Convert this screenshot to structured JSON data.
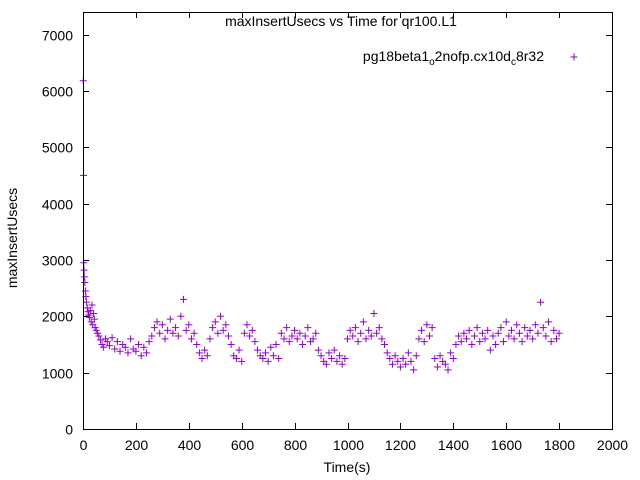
{
  "chart_data": {
    "type": "scatter",
    "title": "maxInsertUsecs vs Time for qr100.L1",
    "xlabel": "Time(s)",
    "ylabel": "maxInsertUsecs",
    "xlim": [
      0,
      2000
    ],
    "ylim": [
      0,
      7400
    ],
    "xticks": [
      0,
      200,
      400,
      600,
      800,
      1000,
      1200,
      1400,
      1600,
      1800,
      2000
    ],
    "yticks": [
      0,
      1000,
      2000,
      3000,
      4000,
      5000,
      6000,
      7000
    ],
    "grid": false,
    "legend_position": "top-right",
    "marker": "+",
    "color": "#9400d3",
    "series": [
      {
        "name": "pg18beta1_o2nofp.cx10d_c8r32",
        "points": [
          [
            1,
            6180
          ],
          [
            2,
            4500
          ],
          [
            3,
            2950
          ],
          [
            4,
            2820
          ],
          [
            5,
            2700
          ],
          [
            7,
            2600
          ],
          [
            9,
            2450
          ],
          [
            11,
            2350
          ],
          [
            13,
            2250
          ],
          [
            16,
            2150
          ],
          [
            19,
            2080
          ],
          [
            22,
            2020
          ],
          [
            25,
            1980
          ],
          [
            28,
            2100
          ],
          [
            31,
            1900
          ],
          [
            34,
            2200
          ],
          [
            37,
            1850
          ],
          [
            40,
            2050
          ],
          [
            43,
            1950
          ],
          [
            46,
            1800
          ],
          [
            50,
            1750
          ],
          [
            55,
            1700
          ],
          [
            60,
            1650
          ],
          [
            66,
            1580
          ],
          [
            72,
            1500
          ],
          [
            78,
            1450
          ],
          [
            85,
            1600
          ],
          [
            92,
            1550
          ],
          [
            100,
            1480
          ],
          [
            110,
            1620
          ],
          [
            120,
            1420
          ],
          [
            130,
            1550
          ],
          [
            140,
            1380
          ],
          [
            150,
            1500
          ],
          [
            160,
            1450
          ],
          [
            170,
            1350
          ],
          [
            180,
            1600
          ],
          [
            190,
            1420
          ],
          [
            200,
            1380
          ],
          [
            210,
            1500
          ],
          [
            220,
            1300
          ],
          [
            230,
            1450
          ],
          [
            240,
            1350
          ],
          [
            250,
            1550
          ],
          [
            260,
            1650
          ],
          [
            270,
            1800
          ],
          [
            280,
            1900
          ],
          [
            290,
            1700
          ],
          [
            300,
            1850
          ],
          [
            310,
            1600
          ],
          [
            320,
            1750
          ],
          [
            330,
            1950
          ],
          [
            340,
            1700
          ],
          [
            350,
            1800
          ],
          [
            360,
            1650
          ],
          [
            370,
            2000
          ],
          [
            380,
            2300
          ],
          [
            390,
            1750
          ],
          [
            400,
            1850
          ],
          [
            410,
            1600
          ],
          [
            420,
            1700
          ],
          [
            430,
            1500
          ],
          [
            440,
            1350
          ],
          [
            450,
            1250
          ],
          [
            460,
            1400
          ],
          [
            470,
            1300
          ],
          [
            480,
            1600
          ],
          [
            490,
            1800
          ],
          [
            500,
            1900
          ],
          [
            510,
            1700
          ],
          [
            520,
            2000
          ],
          [
            530,
            1750
          ],
          [
            540,
            1850
          ],
          [
            550,
            1650
          ],
          [
            560,
            1500
          ],
          [
            570,
            1300
          ],
          [
            580,
            1250
          ],
          [
            590,
            1400
          ],
          [
            600,
            1200
          ],
          [
            610,
            1700
          ],
          [
            620,
            1850
          ],
          [
            630,
            1650
          ],
          [
            640,
            1750
          ],
          [
            650,
            1550
          ],
          [
            660,
            1400
          ],
          [
            670,
            1300
          ],
          [
            680,
            1250
          ],
          [
            690,
            1350
          ],
          [
            700,
            1200
          ],
          [
            710,
            1450
          ],
          [
            720,
            1300
          ],
          [
            730,
            1500
          ],
          [
            740,
            1250
          ],
          [
            750,
            1700
          ],
          [
            760,
            1600
          ],
          [
            770,
            1800
          ],
          [
            780,
            1550
          ],
          [
            790,
            1650
          ],
          [
            800,
            1750
          ],
          [
            810,
            1600
          ],
          [
            820,
            1700
          ],
          [
            830,
            1500
          ],
          [
            840,
            1650
          ],
          [
            850,
            1800
          ],
          [
            860,
            1550
          ],
          [
            870,
            1600
          ],
          [
            880,
            1700
          ],
          [
            890,
            1400
          ],
          [
            900,
            1300
          ],
          [
            910,
            1200
          ],
          [
            920,
            1150
          ],
          [
            930,
            1350
          ],
          [
            940,
            1250
          ],
          [
            950,
            1400
          ],
          [
            960,
            1200
          ],
          [
            970,
            1300
          ],
          [
            980,
            1150
          ],
          [
            990,
            1250
          ],
          [
            1000,
            1600
          ],
          [
            1010,
            1750
          ],
          [
            1020,
            1650
          ],
          [
            1030,
            1800
          ],
          [
            1040,
            1550
          ],
          [
            1050,
            1700
          ],
          [
            1060,
            1900
          ],
          [
            1070,
            1600
          ],
          [
            1080,
            1750
          ],
          [
            1090,
            1650
          ],
          [
            1100,
            2050
          ],
          [
            1110,
            1700
          ],
          [
            1120,
            1800
          ],
          [
            1130,
            1600
          ],
          [
            1140,
            1500
          ],
          [
            1150,
            1350
          ],
          [
            1160,
            1250
          ],
          [
            1170,
            1150
          ],
          [
            1180,
            1300
          ],
          [
            1190,
            1200
          ],
          [
            1200,
            1100
          ],
          [
            1210,
            1250
          ],
          [
            1220,
            1150
          ],
          [
            1230,
            1350
          ],
          [
            1240,
            1200
          ],
          [
            1250,
            1050
          ],
          [
            1260,
            1300
          ],
          [
            1270,
            1600
          ],
          [
            1280,
            1750
          ],
          [
            1290,
            1550
          ],
          [
            1300,
            1850
          ],
          [
            1310,
            1650
          ],
          [
            1320,
            1800
          ],
          [
            1330,
            1250
          ],
          [
            1340,
            1100
          ],
          [
            1350,
            1300
          ],
          [
            1360,
            1200
          ],
          [
            1370,
            1150
          ],
          [
            1380,
            1050
          ],
          [
            1390,
            1350
          ],
          [
            1400,
            1250
          ],
          [
            1410,
            1500
          ],
          [
            1420,
            1650
          ],
          [
            1430,
            1550
          ],
          [
            1440,
            1700
          ],
          [
            1450,
            1600
          ],
          [
            1460,
            1750
          ],
          [
            1470,
            1500
          ],
          [
            1480,
            1650
          ],
          [
            1490,
            1800
          ],
          [
            1500,
            1550
          ],
          [
            1510,
            1700
          ],
          [
            1520,
            1600
          ],
          [
            1530,
            1750
          ],
          [
            1540,
            1400
          ],
          [
            1550,
            1650
          ],
          [
            1560,
            1500
          ],
          [
            1570,
            1700
          ],
          [
            1580,
            1800
          ],
          [
            1590,
            1550
          ],
          [
            1600,
            1900
          ],
          [
            1610,
            1650
          ],
          [
            1620,
            1750
          ],
          [
            1630,
            1600
          ],
          [
            1640,
            1850
          ],
          [
            1650,
            1700
          ],
          [
            1660,
            1550
          ],
          [
            1670,
            1800
          ],
          [
            1680,
            1650
          ],
          [
            1690,
            1750
          ],
          [
            1700,
            1600
          ],
          [
            1710,
            1850
          ],
          [
            1720,
            1700
          ],
          [
            1730,
            2250
          ],
          [
            1740,
            1800
          ],
          [
            1750,
            1650
          ],
          [
            1760,
            1900
          ],
          [
            1770,
            1550
          ],
          [
            1780,
            1750
          ],
          [
            1790,
            1600
          ],
          [
            1800,
            1700
          ]
        ]
      }
    ]
  }
}
